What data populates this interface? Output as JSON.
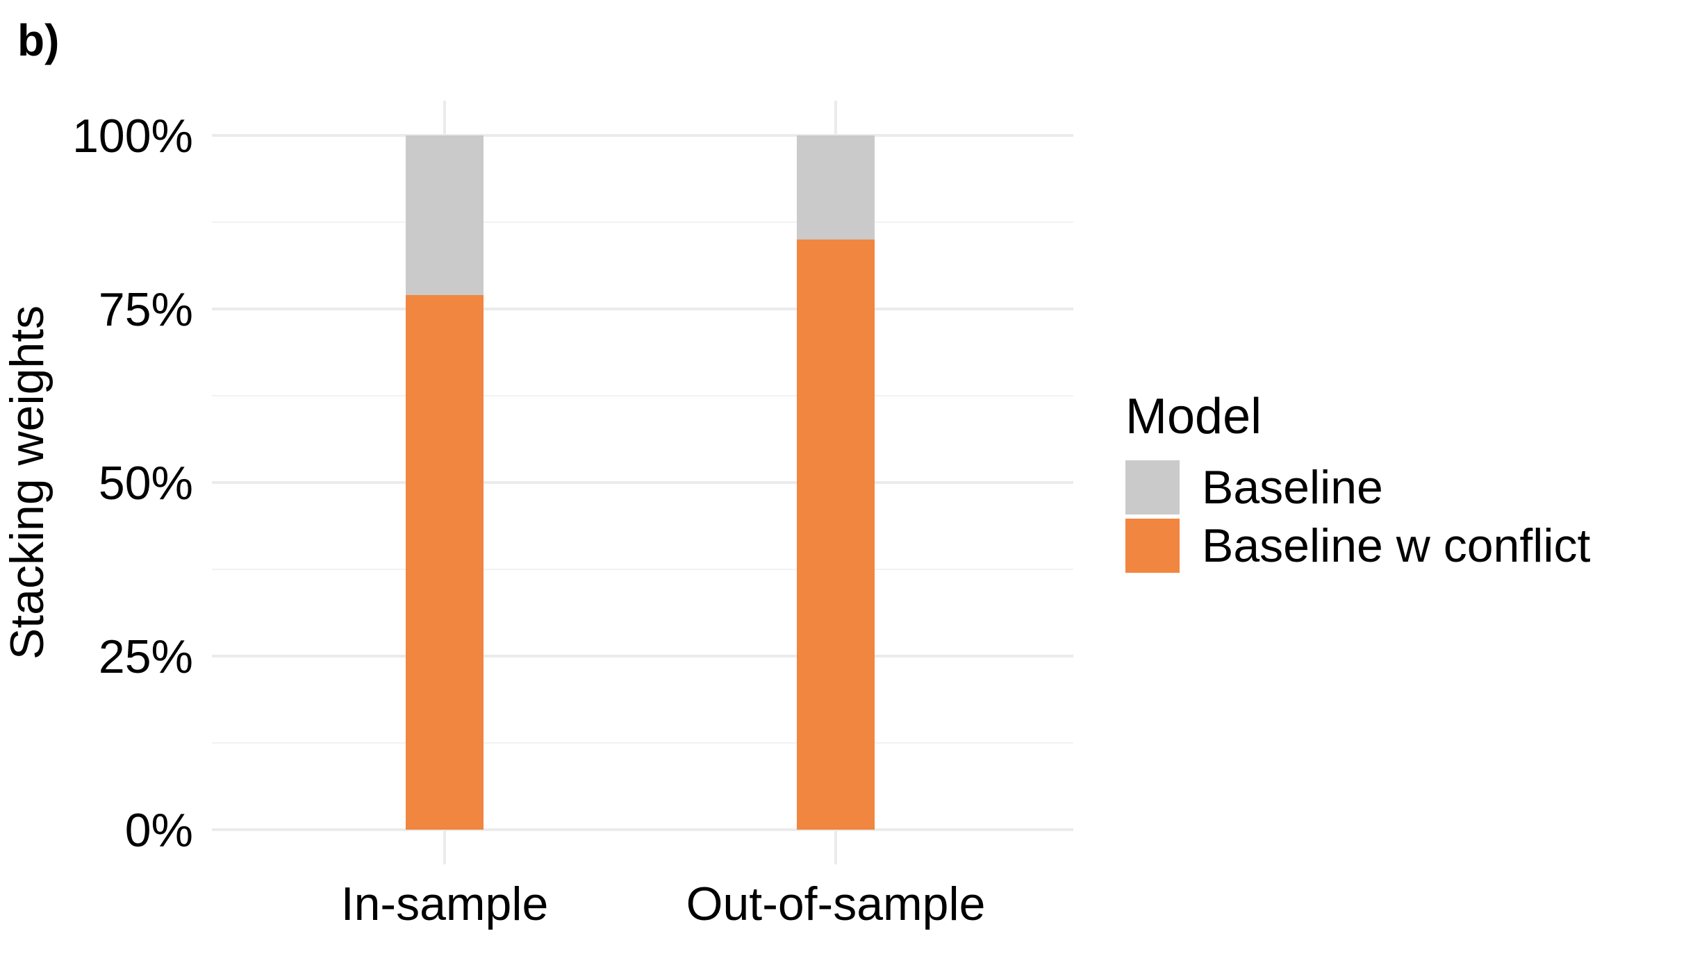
{
  "panel_label": "b)",
  "chart_data": {
    "type": "bar",
    "stacked": true,
    "categories": [
      "In-sample",
      "Out-of-sample"
    ],
    "series": [
      {
        "name": "Baseline w conflict",
        "values": [
          0.77,
          0.85
        ],
        "color": "#F0863F"
      },
      {
        "name": "Baseline",
        "values": [
          0.23,
          0.15
        ],
        "color": "#CACACA"
      }
    ],
    "ylabel": "Stacking weights",
    "xlabel": "",
    "ylim": [
      0,
      1
    ],
    "yticks": [
      0,
      0.25,
      0.5,
      0.75,
      1
    ],
    "ytick_labels": [
      "0%",
      "25%",
      "50%",
      "75%",
      "100%"
    ],
    "grid": true,
    "legend": {
      "title": "Model",
      "position": "right",
      "items": [
        {
          "label": "Baseline",
          "color": "#CACACA"
        },
        {
          "label": "Baseline w conflict",
          "color": "#F0863F"
        }
      ]
    }
  }
}
